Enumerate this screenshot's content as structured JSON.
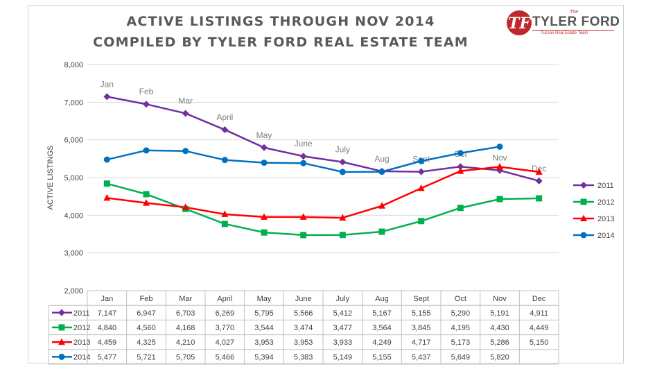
{
  "title": {
    "line1": "ACTIVE LISTINGS THROUGH NOV 2014",
    "line2": "COMPILED BY TYLER FORD REAL ESTATE TEAM"
  },
  "logo": {
    "the": "The",
    "name": "TYLER FORD",
    "tagline": "Tucson Real Estate Team",
    "colors": {
      "red": "#c0272d",
      "gray": "#555555"
    }
  },
  "chart_data": {
    "type": "line",
    "ylabel": "ACTIVE LISTINGS",
    "ylim": [
      2000,
      8000
    ],
    "yticks": [
      "2,000",
      "3,000",
      "4,000",
      "5,000",
      "6,000",
      "7,000",
      "8,000"
    ],
    "grid": true,
    "legend_position": "right",
    "categories": [
      "Jan",
      "Feb",
      "Mar",
      "April",
      "May",
      "June",
      "July",
      "Aug",
      "Sept",
      "Oct",
      "Nov",
      "Dec"
    ],
    "series": [
      {
        "name": "2011",
        "color": "#7030a0",
        "marker": "diamond",
        "values": [
          7147,
          6947,
          6703,
          6269,
          5795,
          5566,
          5412,
          5167,
          5155,
          5290,
          5191,
          4911
        ],
        "labels": [
          "7,147",
          "6,947",
          "6,703",
          "6,269",
          "5,795",
          "5,566",
          "5,412",
          "5,167",
          "5,155",
          "5,290",
          "5,191",
          "4,911"
        ]
      },
      {
        "name": "2012",
        "color": "#00b050",
        "marker": "square",
        "values": [
          4840,
          4560,
          4168,
          3770,
          3544,
          3474,
          3477,
          3564,
          3845,
          4195,
          4430,
          4449
        ],
        "labels": [
          "4,840",
          "4,560",
          "4,168",
          "3,770",
          "3,544",
          "3,474",
          "3,477",
          "3,564",
          "3,845",
          "4,195",
          "4,430",
          "4,449"
        ]
      },
      {
        "name": "2013",
        "color": "#ff0000",
        "marker": "triangle",
        "values": [
          4459,
          4325,
          4210,
          4027,
          3953,
          3953,
          3933,
          4249,
          4717,
          5173,
          5286,
          5150
        ],
        "labels": [
          "4,459",
          "4,325",
          "4,210",
          "4,027",
          "3,953",
          "3,953",
          "3,933",
          "4,249",
          "4,717",
          "5,173",
          "5,286",
          "5,150"
        ]
      },
      {
        "name": "2014",
        "color": "#0070c0",
        "marker": "circle",
        "values": [
          5477,
          5721,
          5705,
          5466,
          5394,
          5383,
          5149,
          5155,
          5437,
          5649,
          5820,
          null
        ],
        "labels": [
          "5,477",
          "5,721",
          "5,705",
          "5,466",
          "5,394",
          "5,383",
          "5,149",
          "5,155",
          "5,437",
          "5,649",
          "5,820",
          ""
        ]
      }
    ]
  }
}
